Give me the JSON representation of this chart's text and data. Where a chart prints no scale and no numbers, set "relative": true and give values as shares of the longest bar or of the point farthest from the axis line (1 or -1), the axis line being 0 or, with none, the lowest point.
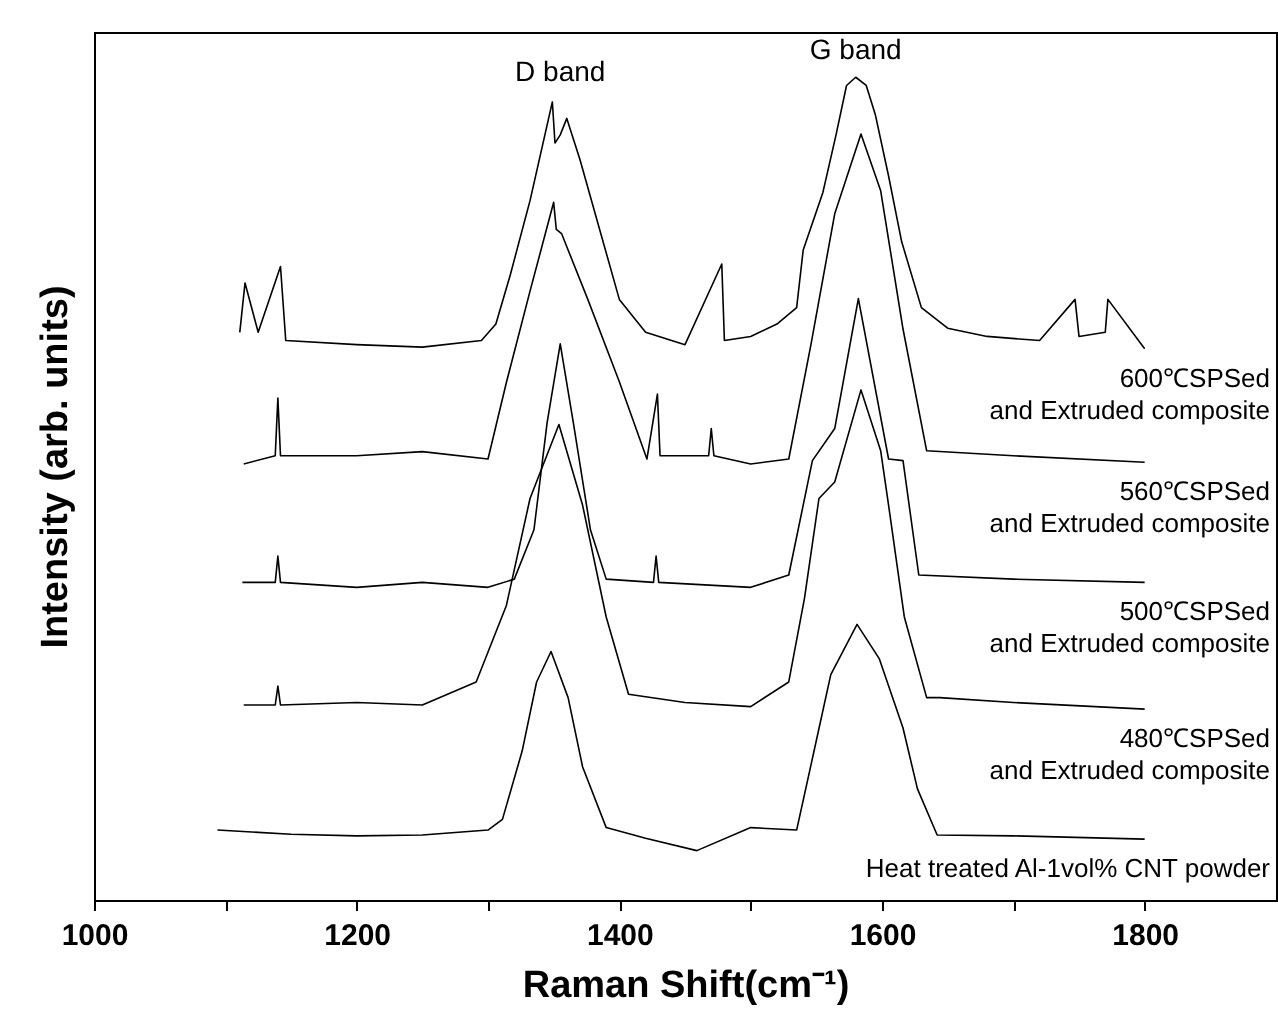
{
  "chart_data": {
    "type": "line",
    "xlabel": "Raman Shift(cm⁻¹)",
    "ylabel": "Intensity (arb. units)",
    "relative": true,
    "legend": false,
    "grid": false,
    "marker": "none",
    "line_style": "solid",
    "xlim": [
      1000,
      1900
    ],
    "xticks": [
      1000,
      {
        "value": 1100,
        "label": null
      },
      1200,
      {
        "value": 1300,
        "label": null
      },
      1400,
      {
        "value": 1500,
        "label": null
      },
      1600,
      {
        "value": 1700,
        "label": null
      },
      1800
    ],
    "annotations": [
      {
        "text": "D band",
        "x": 1355,
        "y": 0.973
      },
      {
        "text": "G band",
        "x": 1580,
        "y": 1.0
      }
    ],
    "series": [
      {
        "name": "600℃SPSed\nand Extruded composite",
        "color": "#000000",
        "x": [
          1111,
          1115,
          1125,
          1142,
          1146,
          1200,
          1250,
          1295,
          1306,
          1317,
          1332,
          1349,
          1351,
          1355,
          1360,
          1370,
          1385,
          1400,
          1420,
          1450,
          1478,
          1480,
          1500,
          1520,
          1535,
          1540,
          1555,
          1565,
          1573,
          1580,
          1588,
          1595,
          1605,
          1615,
          1630,
          1650,
          1680,
          1720,
          1747,
          1750,
          1770,
          1772,
          1800
        ],
        "values": [
          0.69,
          0.75,
          0.69,
          0.77,
          0.68,
          0.675,
          0.672,
          0.68,
          0.7,
          0.76,
          0.85,
          0.97,
          0.92,
          0.93,
          0.95,
          0.9,
          0.815,
          0.73,
          0.69,
          0.675,
          0.773,
          0.68,
          0.685,
          0.7,
          0.72,
          0.79,
          0.86,
          0.93,
          0.99,
          1.0,
          0.99,
          0.954,
          0.88,
          0.8,
          0.72,
          0.695,
          0.685,
          0.68,
          0.73,
          0.685,
          0.69,
          0.73,
          0.67
        ]
      },
      {
        "name": "560℃SPSed\nand Extruded composite",
        "color": "#000000",
        "x": [
          1114,
          1138,
          1140,
          1142,
          1200,
          1250,
          1300,
          1314,
          1332,
          1350,
          1352,
          1356,
          1376,
          1400,
          1421,
          1429,
          1431,
          1468,
          1470,
          1472,
          1500,
          1529,
          1546,
          1564,
          1584,
          1599,
          1616,
          1634,
          1700,
          1800
        ],
        "values": [
          0.53,
          0.54,
          0.61,
          0.54,
          0.54,
          0.545,
          0.536,
          0.629,
          0.74,
          0.848,
          0.815,
          0.81,
          0.73,
          0.63,
          0.536,
          0.615,
          0.54,
          0.54,
          0.573,
          0.54,
          0.53,
          0.536,
          0.676,
          0.834,
          0.931,
          0.862,
          0.694,
          0.546,
          0.54,
          0.532
        ]
      },
      {
        "name": "500℃SPSed\nand Extruded composite",
        "color": "#000000",
        "x": [
          1113,
          1138,
          1140,
          1142,
          1200,
          1250,
          1300,
          1320,
          1335,
          1345,
          1355,
          1365,
          1378,
          1390,
          1426,
          1428,
          1430,
          1500,
          1529,
          1547,
          1564,
          1582,
          1605,
          1616,
          1628,
          1700,
          1800
        ],
        "values": [
          0.386,
          0.386,
          0.418,
          0.386,
          0.38,
          0.386,
          0.38,
          0.39,
          0.45,
          0.58,
          0.676,
          0.58,
          0.45,
          0.39,
          0.386,
          0.418,
          0.386,
          0.38,
          0.395,
          0.534,
          0.573,
          0.731,
          0.536,
          0.534,
          0.395,
          0.39,
          0.386
        ]
      },
      {
        "name": "480℃SPSed\nand Extruded composite",
        "color": "#000000",
        "x": [
          1114,
          1138,
          1140,
          1142,
          1200,
          1250,
          1291,
          1314,
          1332,
          1354,
          1372,
          1390,
          1407,
          1450,
          1500,
          1529,
          1541,
          1552,
          1564,
          1584,
          1599,
          1605,
          1617,
          1634,
          1644,
          1700,
          1800
        ],
        "values": [
          0.237,
          0.237,
          0.26,
          0.237,
          0.24,
          0.237,
          0.265,
          0.358,
          0.488,
          0.578,
          0.48,
          0.344,
          0.25,
          0.24,
          0.235,
          0.265,
          0.367,
          0.488,
          0.508,
          0.62,
          0.546,
          0.48,
          0.344,
          0.246,
          0.246,
          0.24,
          0.232
        ]
      },
      {
        "name": "Heat treated Al-1vol% CNT powder",
        "color": "#000000",
        "x": [
          1094,
          1150,
          1200,
          1250,
          1300,
          1311,
          1326,
          1337,
          1348,
          1361,
          1372,
          1390,
          1420,
          1459,
          1500,
          1535,
          1547,
          1561,
          1581,
          1598,
          1616,
          1627,
          1642,
          1700,
          1800
        ],
        "values": [
          0.085,
          0.08,
          0.078,
          0.079,
          0.085,
          0.098,
          0.181,
          0.265,
          0.302,
          0.246,
          0.162,
          0.088,
          0.075,
          0.06,
          0.088,
          0.085,
          0.172,
          0.274,
          0.335,
          0.293,
          0.209,
          0.135,
          0.079,
          0.078,
          0.074
        ]
      }
    ]
  }
}
